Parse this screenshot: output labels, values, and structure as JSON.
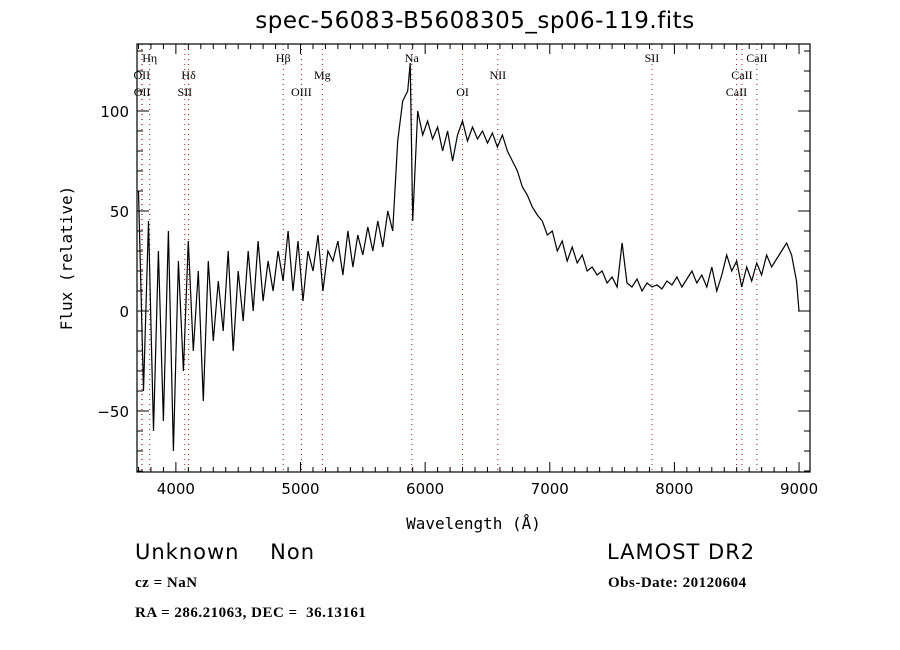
{
  "chart_data": {
    "type": "line",
    "title": "spec-56083-B5608305_sp06-119.fits",
    "xlabel": "Wavelength (Å)",
    "ylabel": "Flux (relative)",
    "xlim": [
      3688,
      9088
    ],
    "ylim": [
      -80.5,
      133.5
    ],
    "x_ticks": [
      4000,
      5000,
      6000,
      7000,
      8000,
      9000
    ],
    "y_ticks": [
      -50,
      0,
      50,
      100
    ],
    "grid": false,
    "line_color": "#000000",
    "marker_line_color": "#8b1a1a",
    "series": [
      {
        "name": "flux",
        "points": [
          [
            3700,
            60
          ],
          [
            3740,
            -40
          ],
          [
            3780,
            45
          ],
          [
            3820,
            -60
          ],
          [
            3860,
            30
          ],
          [
            3900,
            -55
          ],
          [
            3940,
            40
          ],
          [
            3980,
            -70
          ],
          [
            4020,
            25
          ],
          [
            4060,
            -30
          ],
          [
            4100,
            35
          ],
          [
            4140,
            -20
          ],
          [
            4180,
            20
          ],
          [
            4220,
            -45
          ],
          [
            4260,
            25
          ],
          [
            4300,
            -15
          ],
          [
            4340,
            15
          ],
          [
            4380,
            -10
          ],
          [
            4420,
            30
          ],
          [
            4460,
            -20
          ],
          [
            4500,
            20
          ],
          [
            4540,
            -5
          ],
          [
            4580,
            30
          ],
          [
            4620,
            0
          ],
          [
            4660,
            35
          ],
          [
            4700,
            5
          ],
          [
            4740,
            25
          ],
          [
            4780,
            10
          ],
          [
            4820,
            30
          ],
          [
            4860,
            15
          ],
          [
            4900,
            40
          ],
          [
            4940,
            10
          ],
          [
            4980,
            35
          ],
          [
            5020,
            5
          ],
          [
            5060,
            30
          ],
          [
            5100,
            20
          ],
          [
            5140,
            38
          ],
          [
            5180,
            10
          ],
          [
            5220,
            30
          ],
          [
            5260,
            25
          ],
          [
            5300,
            35
          ],
          [
            5340,
            18
          ],
          [
            5380,
            40
          ],
          [
            5420,
            22
          ],
          [
            5460,
            38
          ],
          [
            5500,
            28
          ],
          [
            5540,
            42
          ],
          [
            5580,
            30
          ],
          [
            5620,
            45
          ],
          [
            5660,
            32
          ],
          [
            5700,
            50
          ],
          [
            5740,
            40
          ],
          [
            5780,
            85
          ],
          [
            5820,
            105
          ],
          [
            5860,
            110
          ],
          [
            5880,
            124
          ],
          [
            5900,
            45
          ],
          [
            5940,
            100
          ],
          [
            5980,
            88
          ],
          [
            6020,
            95
          ],
          [
            6060,
            86
          ],
          [
            6100,
            92
          ],
          [
            6140,
            80
          ],
          [
            6180,
            90
          ],
          [
            6220,
            75
          ],
          [
            6260,
            88
          ],
          [
            6300,
            95
          ],
          [
            6340,
            85
          ],
          [
            6380,
            92
          ],
          [
            6420,
            86
          ],
          [
            6460,
            90
          ],
          [
            6500,
            84
          ],
          [
            6540,
            89
          ],
          [
            6580,
            82
          ],
          [
            6620,
            88
          ],
          [
            6660,
            80
          ],
          [
            6700,
            75
          ],
          [
            6740,
            70
          ],
          [
            6780,
            62
          ],
          [
            6820,
            58
          ],
          [
            6860,
            52
          ],
          [
            6900,
            48
          ],
          [
            6940,
            45
          ],
          [
            6980,
            38
          ],
          [
            7020,
            40
          ],
          [
            7060,
            30
          ],
          [
            7100,
            35
          ],
          [
            7140,
            25
          ],
          [
            7180,
            32
          ],
          [
            7220,
            24
          ],
          [
            7260,
            28
          ],
          [
            7300,
            20
          ],
          [
            7340,
            22
          ],
          [
            7380,
            18
          ],
          [
            7420,
            20
          ],
          [
            7460,
            14
          ],
          [
            7500,
            17
          ],
          [
            7540,
            12
          ],
          [
            7580,
            34
          ],
          [
            7620,
            14
          ],
          [
            7660,
            12
          ],
          [
            7700,
            16
          ],
          [
            7740,
            10
          ],
          [
            7780,
            14
          ],
          [
            7820,
            12
          ],
          [
            7860,
            13
          ],
          [
            7900,
            11
          ],
          [
            7940,
            15
          ],
          [
            7980,
            13
          ],
          [
            8020,
            17
          ],
          [
            8060,
            12
          ],
          [
            8100,
            16
          ],
          [
            8140,
            20
          ],
          [
            8180,
            14
          ],
          [
            8220,
            18
          ],
          [
            8260,
            12
          ],
          [
            8300,
            22
          ],
          [
            8340,
            10
          ],
          [
            8380,
            18
          ],
          [
            8420,
            28
          ],
          [
            8460,
            20
          ],
          [
            8500,
            25
          ],
          [
            8540,
            12
          ],
          [
            8580,
            22
          ],
          [
            8620,
            15
          ],
          [
            8660,
            24
          ],
          [
            8700,
            18
          ],
          [
            8740,
            28
          ],
          [
            8780,
            22
          ],
          [
            8820,
            26
          ],
          [
            8860,
            30
          ],
          [
            8900,
            34
          ],
          [
            8940,
            28
          ],
          [
            8980,
            15
          ],
          [
            9000,
            0
          ]
        ]
      }
    ],
    "line_markers": [
      {
        "label": "Hη",
        "wavelength": 3790,
        "row": 0
      },
      {
        "label": "OII",
        "wavelength": 3727,
        "row": 1
      },
      {
        "label": "OII",
        "wavelength": 3729,
        "row": 2
      },
      {
        "label": "Hδ",
        "wavelength": 4102,
        "row": 1
      },
      {
        "label": "SII",
        "wavelength": 4072,
        "row": 2
      },
      {
        "label": "Hβ",
        "wavelength": 4861,
        "row": 0
      },
      {
        "label": "OIII",
        "wavelength": 5007,
        "row": 2
      },
      {
        "label": "Mg",
        "wavelength": 5175,
        "row": 1
      },
      {
        "label": "Na",
        "wavelength": 5893,
        "row": 0
      },
      {
        "label": "OI",
        "wavelength": 6300,
        "row": 2
      },
      {
        "label": "NII",
        "wavelength": 6583,
        "row": 1
      },
      {
        "label": "SII",
        "wavelength": 7820,
        "row": 0
      },
      {
        "label": "CaII",
        "wavelength": 8662,
        "row": 0
      },
      {
        "label": "CaII",
        "wavelength": 8542,
        "row": 1
      },
      {
        "label": "CaII",
        "wavelength": 8498,
        "row": 2
      }
    ]
  },
  "info": {
    "classification": "Unknown    Non",
    "survey": "LAMOST DR2",
    "cz": "cz = NaN",
    "obs_date": "Obs-Date: 20120604",
    "coords": "RA = 286.21063, DEC =  36.13161"
  }
}
